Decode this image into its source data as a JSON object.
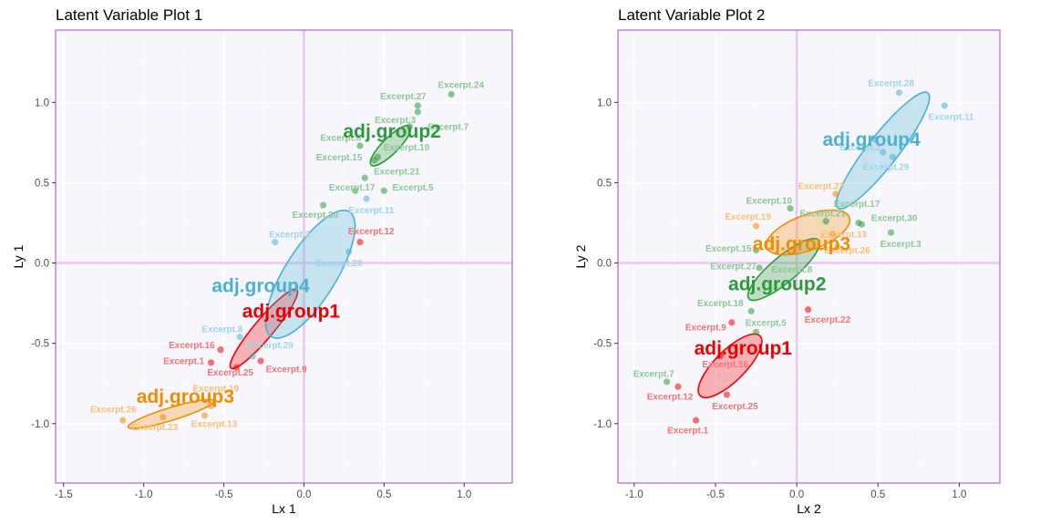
{
  "chart_data": [
    {
      "type": "scatter",
      "title": "Latent Variable Plot 1",
      "xlabel": "Lx 1",
      "ylabel": "Ly 1",
      "xlim": [
        -1.55,
        1.3
      ],
      "ylim": [
        -1.37,
        1.45
      ],
      "xticks": [
        -1.5,
        -1.0,
        -0.5,
        0.0,
        0.5,
        1.0
      ],
      "xtick_labels": [
        "-1.5",
        "-1.0",
        "-0.5",
        "0.0",
        "0.5",
        "1.0"
      ],
      "yticks": [
        -1.0,
        -0.5,
        0.0,
        0.5,
        1.0
      ],
      "ytick_labels": [
        "-1.0",
        "-0.5",
        "0.0",
        "0.5",
        "1.0"
      ],
      "groups": [
        {
          "name": "adj.group1",
          "color": "#ef0000",
          "label_pos": [
            -0.08,
            -0.34
          ],
          "ellipse": {
            "cx": -0.25,
            "cy": -0.41,
            "rx": 0.32,
            "ry": 0.06,
            "angle": 50
          }
        },
        {
          "name": "adj.group2",
          "color": "#2e9a3a",
          "label_pos": [
            0.55,
            0.78
          ],
          "ellipse": {
            "cx": 0.54,
            "cy": 0.73,
            "rx": 0.17,
            "ry": 0.05,
            "angle": 45
          }
        },
        {
          "name": "adj.group3",
          "color": "#f08c00",
          "label_pos": [
            -0.74,
            -0.87
          ],
          "ellipse": {
            "cx": -0.83,
            "cy": -0.94,
            "rx": 0.28,
            "ry": 0.04,
            "angle": 17
          }
        },
        {
          "name": "adj.group4",
          "color": "#4ab2d1",
          "label_pos": [
            -0.27,
            -0.18
          ],
          "ellipse": {
            "cx": 0.04,
            "cy": -0.07,
            "rx": 0.46,
            "ry": 0.16,
            "angle": 58
          }
        }
      ],
      "points": [
        {
          "label": "Excerpt.24",
          "x": 0.92,
          "y": 1.05,
          "group": "adj.group2"
        },
        {
          "label": "Excerpt.27",
          "x": 0.71,
          "y": 0.98,
          "group": "adj.group2"
        },
        {
          "label": "Excerpt.3",
          "x": 0.71,
          "y": 0.94,
          "group": "adj.group2"
        },
        {
          "label": "Excerpt.7",
          "x": 0.66,
          "y": 0.85,
          "group": "adj.group2"
        },
        {
          "label": "Excerpt.8",
          "x": 0.35,
          "y": 0.73,
          "group": "adj.group2"
        },
        {
          "label": "Excerpt.10",
          "x": 0.46,
          "y": 0.66,
          "group": "adj.group2"
        },
        {
          "label": "Excerpt.15",
          "x": 0.44,
          "y": 0.64,
          "group": "adj.group2"
        },
        {
          "label": "Excerpt.21",
          "x": 0.38,
          "y": 0.53,
          "group": "adj.group2"
        },
        {
          "label": "Excerpt.17",
          "x": 0.32,
          "y": 0.45,
          "group": "adj.group2"
        },
        {
          "label": "Excerpt.5",
          "x": 0.5,
          "y": 0.45,
          "group": "adj.group2"
        },
        {
          "label": "Excerpt.30",
          "x": 0.12,
          "y": 0.36,
          "group": "adj.group2"
        },
        {
          "label": "Excerpt.11",
          "x": 0.39,
          "y": 0.4,
          "group": "adj.group4"
        },
        {
          "label": "Excerpt.2",
          "x": -0.18,
          "y": 0.13,
          "group": "adj.group4"
        },
        {
          "label": "Excerpt.28",
          "x": 0.28,
          "y": 0.07,
          "group": "adj.group4"
        },
        {
          "label": "Excerpt.8",
          "x": -0.4,
          "y": -0.46,
          "group": "adj.group4"
        },
        {
          "label": "Excerpt.29",
          "x": -0.32,
          "y": -0.58,
          "group": "adj.group4"
        },
        {
          "label": "Excerpt.12",
          "x": 0.35,
          "y": 0.13,
          "group": "adj.group1"
        },
        {
          "label": "Excerpt.16",
          "x": -0.52,
          "y": -0.54,
          "group": "adj.group1"
        },
        {
          "label": "Excerpt.1",
          "x": -0.58,
          "y": -0.62,
          "group": "adj.group1"
        },
        {
          "label": "Excerpt.25",
          "x": -0.42,
          "y": -0.65,
          "group": "adj.group1"
        },
        {
          "label": "Excerpt.9",
          "x": -0.27,
          "y": -0.61,
          "group": "adj.group1"
        },
        {
          "label": "Excerpt.19",
          "x": -0.58,
          "y": -0.89,
          "group": "adj.group3"
        },
        {
          "label": "Excerpt.26",
          "x": -1.13,
          "y": -0.98,
          "group": "adj.group3"
        },
        {
          "label": "Excerpt.23",
          "x": -0.88,
          "y": -0.96,
          "group": "adj.group3"
        },
        {
          "label": "Excerpt.13",
          "x": -0.62,
          "y": -0.95,
          "group": "adj.group3"
        }
      ],
      "point_labels": [
        {
          "text": "Excerpt.24",
          "x": 0.98,
          "y": 1.09,
          "group": "adj.group2"
        },
        {
          "text": "Excerpt.27",
          "x": 0.62,
          "y": 1.02,
          "group": "adj.group2"
        },
        {
          "text": "Excerpt.3",
          "x": 0.57,
          "y": 0.87,
          "group": "adj.group2"
        },
        {
          "text": "Excerpt.7",
          "x": 0.9,
          "y": 0.83,
          "group": "adj.group2"
        },
        {
          "text": "Excerpt.8",
          "x": 0.23,
          "y": 0.76,
          "group": "adj.group2"
        },
        {
          "text": "Excerpt.10",
          "x": 0.64,
          "y": 0.7,
          "group": "adj.group2"
        },
        {
          "text": "Excerpt.15",
          "x": 0.22,
          "y": 0.64,
          "group": "adj.group2"
        },
        {
          "text": "Excerpt.21",
          "x": 0.58,
          "y": 0.55,
          "group": "adj.group2"
        },
        {
          "text": "Excerpt.17",
          "x": 0.3,
          "y": 0.45,
          "group": "adj.group2"
        },
        {
          "text": "Excerpt.5",
          "x": 0.68,
          "y": 0.45,
          "group": "adj.group2"
        },
        {
          "text": "Excerpt.30",
          "x": 0.07,
          "y": 0.28,
          "group": "adj.group2"
        },
        {
          "text": "Excerpt.11",
          "x": 0.42,
          "y": 0.31,
          "group": "adj.group4"
        },
        {
          "text": "Excerpt.2",
          "x": -0.09,
          "y": 0.16,
          "group": "adj.group4"
        },
        {
          "text": "Excerpt.28",
          "x": 0.22,
          "y": -0.02,
          "group": "adj.group4"
        },
        {
          "text": "Excerpt.8",
          "x": -0.51,
          "y": -0.43,
          "group": "adj.group4"
        },
        {
          "text": "Excerpt.29",
          "x": -0.21,
          "y": -0.53,
          "group": "adj.group4"
        },
        {
          "text": "Excerpt.12",
          "x": 0.42,
          "y": 0.18,
          "group": "adj.group1"
        },
        {
          "text": "Excerpt.16",
          "x": -0.7,
          "y": -0.53,
          "group": "adj.group1"
        },
        {
          "text": "Excerpt.1",
          "x": -0.75,
          "y": -0.63,
          "group": "adj.group1"
        },
        {
          "text": "Excerpt.25",
          "x": -0.46,
          "y": -0.7,
          "group": "adj.group1"
        },
        {
          "text": "Excerpt.9",
          "x": -0.11,
          "y": -0.68,
          "group": "adj.group1"
        },
        {
          "text": "Excerpt.19",
          "x": -0.55,
          "y": -0.8,
          "group": "adj.group3"
        },
        {
          "text": "Excerpt.26",
          "x": -1.19,
          "y": -0.93,
          "group": "adj.group3"
        },
        {
          "text": "Excerpt.23",
          "x": -0.93,
          "y": -1.04,
          "group": "adj.group3"
        },
        {
          "text": "Excerpt.13",
          "x": -0.56,
          "y": -1.02,
          "group": "adj.group3"
        }
      ]
    },
    {
      "type": "scatter",
      "title": "Latent Variable Plot 2",
      "xlabel": "Lx 2",
      "ylabel": "Ly 2",
      "xlim": [
        -1.1,
        1.25
      ],
      "ylim": [
        -1.37,
        1.45
      ],
      "xticks": [
        -1.0,
        -0.5,
        0.0,
        0.5,
        1.0
      ],
      "xtick_labels": [
        "-1.0",
        "-0.5",
        "0.0",
        "0.5",
        "1.0"
      ],
      "yticks": [
        -1.0,
        -0.5,
        0.0,
        0.5,
        1.0
      ],
      "ytick_labels": [
        "-1.0",
        "-0.5",
        "0.0",
        "0.5",
        "1.0"
      ],
      "groups": [
        {
          "name": "adj.group1",
          "color": "#ef0000",
          "label_pos": [
            -0.33,
            -0.57
          ],
          "ellipse": {
            "cx": -0.41,
            "cy": -0.64,
            "rx": 0.26,
            "ry": 0.095,
            "angle": 45
          }
        },
        {
          "name": "adj.group2",
          "color": "#2e9a3a",
          "label_pos": [
            -0.12,
            -0.17
          ],
          "ellipse": {
            "cx": -0.08,
            "cy": -0.04,
            "rx": 0.28,
            "ry": 0.08,
            "angle": 40
          }
        },
        {
          "name": "adj.group3",
          "color": "#f08c00",
          "label_pos": [
            0.03,
            0.08
          ],
          "ellipse": {
            "cx": 0.07,
            "cy": 0.19,
            "rx": 0.27,
            "ry": 0.11,
            "angle": 20
          }
        },
        {
          "name": "adj.group4",
          "color": "#4ab2d1",
          "label_pos": [
            0.46,
            0.73
          ],
          "ellipse": {
            "cx": 0.53,
            "cy": 0.7,
            "rx": 0.45,
            "ry": 0.095,
            "angle": 52
          }
        }
      ],
      "points": [
        {
          "label": "Excerpt.28",
          "x": 0.63,
          "y": 1.06,
          "group": "adj.group4"
        },
        {
          "label": "Excerpt.11",
          "x": 0.91,
          "y": 0.98,
          "group": "adj.group4"
        },
        {
          "label": "Excerpt.2",
          "x": 0.48,
          "y": 0.77,
          "group": "adj.group4"
        },
        {
          "label": "Excerpt.8",
          "x": 0.53,
          "y": 0.69,
          "group": "adj.group4"
        },
        {
          "label": "Excerpt.29",
          "x": 0.59,
          "y": 0.66,
          "group": "adj.group4"
        },
        {
          "label": "Excerpt.23",
          "x": 0.24,
          "y": 0.43,
          "group": "adj.group3"
        },
        {
          "label": "Excerpt.19",
          "x": -0.25,
          "y": 0.23,
          "group": "adj.group3"
        },
        {
          "label": "Excerpt.13",
          "x": 0.22,
          "y": 0.18,
          "group": "adj.group3"
        },
        {
          "label": "Excerpt.26",
          "x": 0.25,
          "y": 0.1,
          "group": "adj.group3"
        },
        {
          "label": "Excerpt.10",
          "x": -0.04,
          "y": 0.34,
          "group": "adj.group2"
        },
        {
          "label": "Excerpt.21",
          "x": 0.18,
          "y": 0.26,
          "group": "adj.group2"
        },
        {
          "label": "Excerpt.17",
          "x": 0.38,
          "y": 0.25,
          "group": "adj.group2"
        },
        {
          "label": "Excerpt.30",
          "x": 0.4,
          "y": 0.24,
          "group": "adj.group2"
        },
        {
          "label": "Excerpt.3",
          "x": 0.58,
          "y": 0.19,
          "group": "adj.group2"
        },
        {
          "label": "Excerpt.15",
          "x": -0.25,
          "y": 0.08,
          "group": "adj.group2"
        },
        {
          "label": "Excerpt.27",
          "x": -0.23,
          "y": -0.03,
          "group": "adj.group2"
        },
        {
          "label": "Excerpt.18",
          "x": -0.28,
          "y": -0.3,
          "group": "adj.group2"
        },
        {
          "label": "Excerpt.5",
          "x": -0.25,
          "y": -0.43,
          "group": "adj.group2"
        },
        {
          "label": "Excerpt.7",
          "x": -0.8,
          "y": -0.74,
          "group": "adj.group2"
        },
        {
          "label": "Excerpt.22",
          "x": 0.07,
          "y": -0.29,
          "group": "adj.group1"
        },
        {
          "label": "Excerpt.9",
          "x": -0.4,
          "y": -0.37,
          "group": "adj.group1"
        },
        {
          "label": "Excerpt.16",
          "x": -0.47,
          "y": -0.58,
          "group": "adj.group1"
        },
        {
          "label": "Excerpt.12",
          "x": -0.73,
          "y": -0.77,
          "group": "adj.group1"
        },
        {
          "label": "Excerpt.25",
          "x": -0.43,
          "y": -0.82,
          "group": "adj.group1"
        },
        {
          "label": "Excerpt.1",
          "x": -0.62,
          "y": -0.98,
          "group": "adj.group1"
        }
      ],
      "point_labels": [
        {
          "text": "Excerpt.28",
          "x": 0.58,
          "y": 1.1,
          "group": "adj.group4"
        },
        {
          "text": "Excerpt.11",
          "x": 0.95,
          "y": 0.89,
          "group": "adj.group4"
        },
        {
          "text": "Excerpt.2",
          "x": 0.39,
          "y": 0.7,
          "group": "adj.group4"
        },
        {
          "text": "Excerpt.29",
          "x": 0.55,
          "y": 0.58,
          "group": "adj.group4"
        },
        {
          "text": "Excerpt.23",
          "x": 0.15,
          "y": 0.46,
          "group": "adj.group3"
        },
        {
          "text": "Excerpt.19",
          "x": -0.3,
          "y": 0.27,
          "group": "adj.group3"
        },
        {
          "text": "Excerpt.13",
          "x": 0.29,
          "y": 0.16,
          "group": "adj.group3"
        },
        {
          "text": "Excerpt.26",
          "x": 0.31,
          "y": 0.06,
          "group": "adj.group3"
        },
        {
          "text": "Excerpt.10",
          "x": -0.17,
          "y": 0.37,
          "group": "adj.group2"
        },
        {
          "text": "Excerpt.21",
          "x": 0.16,
          "y": 0.29,
          "group": "adj.group2"
        },
        {
          "text": "Excerpt.17",
          "x": 0.37,
          "y": 0.35,
          "group": "adj.group2"
        },
        {
          "text": "Excerpt.30",
          "x": 0.6,
          "y": 0.26,
          "group": "adj.group2"
        },
        {
          "text": "Excerpt.3",
          "x": 0.64,
          "y": 0.1,
          "group": "adj.group2"
        },
        {
          "text": "Excerpt.15",
          "x": -0.42,
          "y": 0.07,
          "group": "adj.group2"
        },
        {
          "text": "Excerpt.27",
          "x": -0.39,
          "y": -0.04,
          "group": "adj.group2"
        },
        {
          "text": "Excerpt.8",
          "x": -0.03,
          "y": -0.06,
          "group": "adj.group2"
        },
        {
          "text": "Excerpt.18",
          "x": -0.47,
          "y": -0.27,
          "group": "adj.group2"
        },
        {
          "text": "Excerpt.5",
          "x": -0.19,
          "y": -0.39,
          "group": "adj.group2"
        },
        {
          "text": "Excerpt.7",
          "x": -0.88,
          "y": -0.71,
          "group": "adj.group2"
        },
        {
          "text": "Excerpt.22",
          "x": 0.19,
          "y": -0.37,
          "group": "adj.group1"
        },
        {
          "text": "Excerpt.9",
          "x": -0.56,
          "y": -0.42,
          "group": "adj.group1"
        },
        {
          "text": "Excerpt.16",
          "x": -0.44,
          "y": -0.65,
          "group": "adj.group1"
        },
        {
          "text": "Excerpt.12",
          "x": -0.78,
          "y": -0.85,
          "group": "adj.group1"
        },
        {
          "text": "Excerpt.25",
          "x": -0.38,
          "y": -0.91,
          "group": "adj.group1"
        },
        {
          "text": "Excerpt.1",
          "x": -0.67,
          "y": -1.06,
          "group": "adj.group1"
        }
      ]
    }
  ],
  "colors": {
    "panel_background": "#f8f6fd",
    "panel_border": "#a24fb8",
    "zero_lines": "#e8c8ee",
    "grid": "#ffffff"
  }
}
